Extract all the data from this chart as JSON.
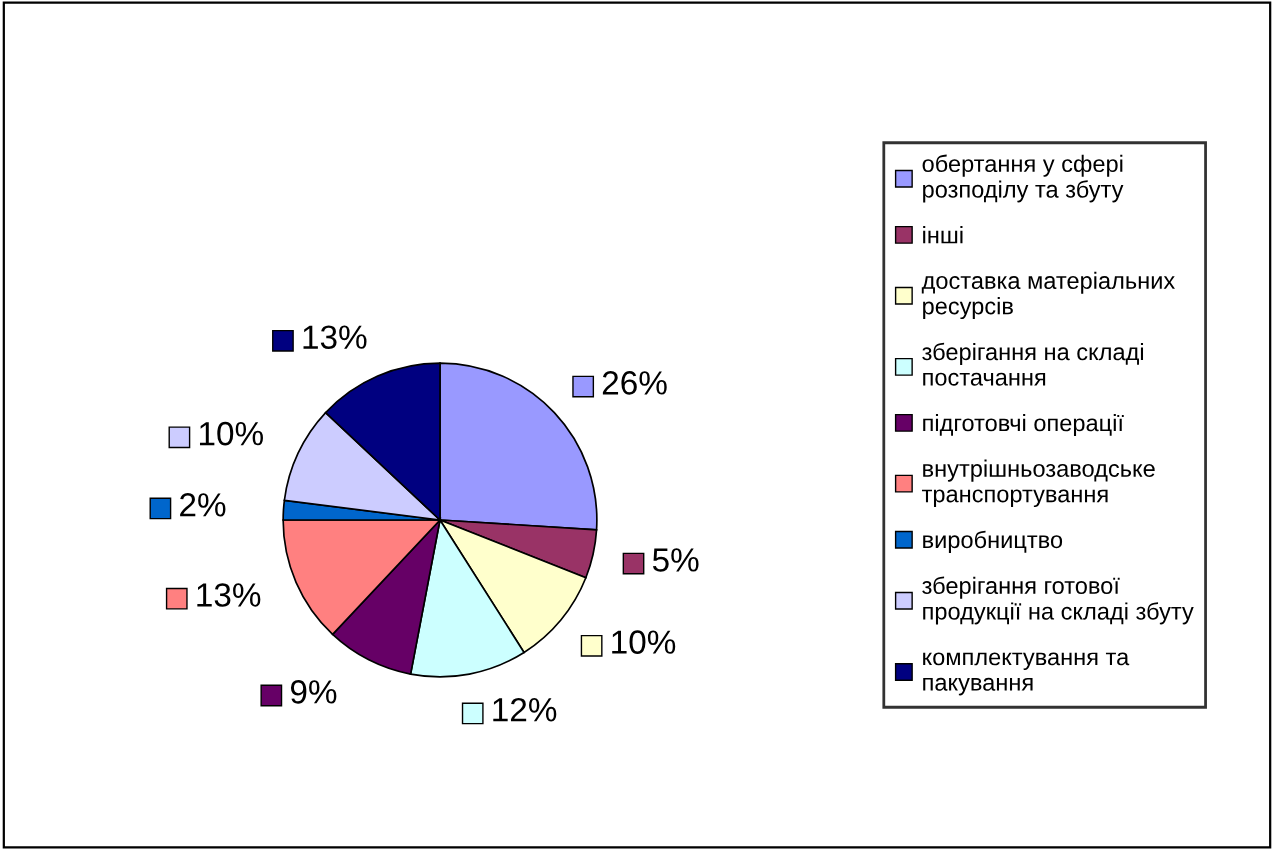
{
  "chart_data": {
    "type": "pie",
    "categories": [
      "обертання у сфері\nрозподілу та збуту",
      "інші",
      "доставка матеріальних\nресурсів",
      "зберігання на складі\nпостачання",
      "підготовчі операції",
      "внутрішньозаводське\nтранспортування",
      "виробництво",
      "зберігання готової\nпродукції на складі збуту",
      "комплектування та\nпакування"
    ],
    "values": [
      26,
      5,
      10,
      12,
      9,
      13,
      2,
      10,
      13
    ],
    "value_labels": [
      "26%",
      "5%",
      "10%",
      "12%",
      "9%",
      "13%",
      "2%",
      "10%",
      "13%"
    ],
    "colors": [
      "#9999ff",
      "#993366",
      "#ffffcc",
      "#ccffff",
      "#660066",
      "#ff8080",
      "#0066cc",
      "#ccccff",
      "#000080"
    ],
    "legend": "right"
  }
}
